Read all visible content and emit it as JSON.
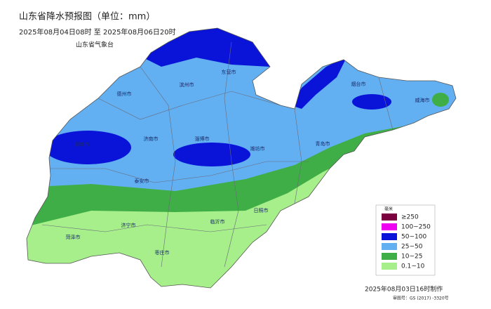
{
  "header": {
    "title": "山东省降水预报图（单位：mm）",
    "period": "2025年08月04日08时  至  2025年08月06日20时",
    "issuer": "山东省气象台"
  },
  "legend": {
    "title": "毫米",
    "items": [
      {
        "label": "≥250",
        "color": "#7a0040"
      },
      {
        "label": "100~250",
        "color": "#f000f0"
      },
      {
        "label": "50~100",
        "color": "#0a14d8"
      },
      {
        "label": "25~50",
        "color": "#62b0f2"
      },
      {
        "label": "10~25",
        "color": "#3fae46"
      },
      {
        "label": "0.1~10",
        "color": "#a6ef8a"
      }
    ]
  },
  "cities": [
    "东营市",
    "烟台市",
    "威海市",
    "德州市",
    "滨州市",
    "淄博市",
    "潍坊市",
    "聊城市",
    "济南市",
    "青岛市",
    "泰安市",
    "日照市",
    "临沂市",
    "济宁市",
    "菏泽市",
    "枣庄市"
  ],
  "footer": {
    "made": "2025年08月03日16时制作",
    "approval": "审图号：GS (2017) -3320号"
  }
}
